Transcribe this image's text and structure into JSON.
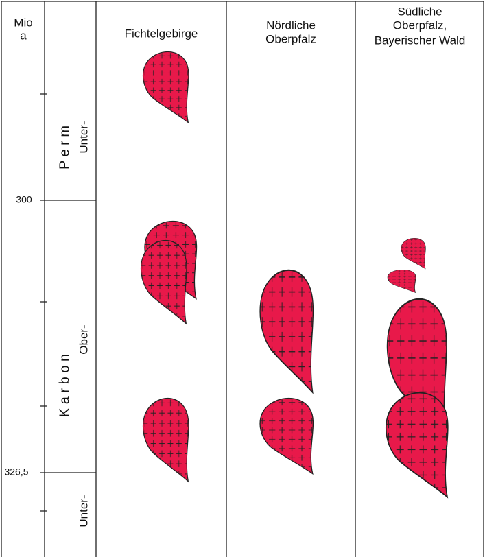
{
  "header": {
    "time_unit": [
      "Mio",
      "a"
    ],
    "columns": [
      {
        "label": [
          "Fichtelgebirge"
        ]
      },
      {
        "label": [
          "Nördliche",
          "Oberpfalz"
        ]
      },
      {
        "label": [
          "Südliche",
          "Oberpfalz,",
          "Bayerischer Wald"
        ]
      }
    ]
  },
  "periods": [
    {
      "name": "P e r m",
      "epochs": [
        "Unter-"
      ]
    },
    {
      "name": "K a r b o n",
      "epochs": [
        "Ober-",
        "Unter-"
      ]
    }
  ],
  "age_labels": [
    "300",
    "326,5"
  ]
}
